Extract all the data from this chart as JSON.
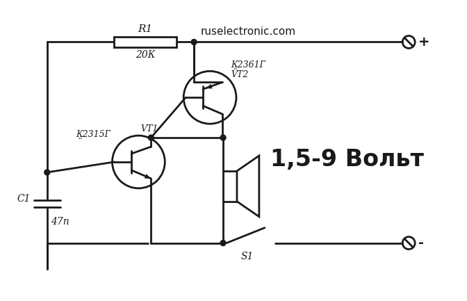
{
  "bg_color": "#ffffff",
  "line_color": "#1a1a1a",
  "line_width": 2.0,
  "text_color": "#1a1a1a",
  "website": "ruselectronic.com",
  "voltage_label": "1,5-9 Вольт",
  "r1_label": "R1",
  "r1_value": "20К",
  "c1_label": "C1",
  "c1_value": "47n",
  "vt1_label": "К̤2315Г",
  "vt1_name": "VT1",
  "vt2_label": "К̤2361Г",
  "vt2_name": "VT2",
  "s1_label": "S1",
  "plus_label": "+",
  "minus_label": "-"
}
